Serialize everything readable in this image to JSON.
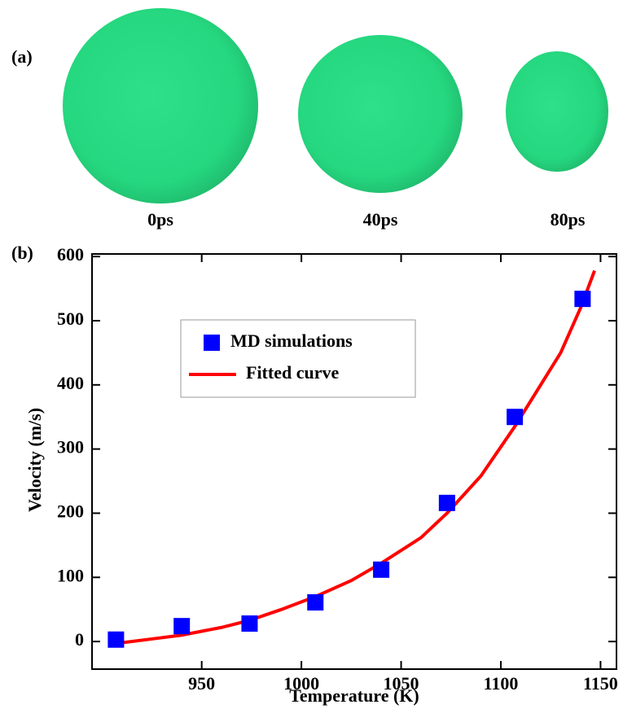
{
  "panel_a": {
    "label": "(a)",
    "captions": [
      "0ps",
      "40ps",
      "80ps"
    ]
  },
  "chart_data": {
    "type": "scatter",
    "panel_label": "(b)",
    "x_label": "Temperature (K)",
    "y_label": "Velocity (m/s)",
    "xlim": [
      895,
      1158
    ],
    "xticks": [
      950,
      1000,
      1050,
      1100,
      1150
    ],
    "ylim": [
      -43,
      604
    ],
    "yticks": [
      0,
      100,
      200,
      300,
      400,
      500,
      600
    ],
    "series": [
      {
        "name": "MD simulations",
        "mode": "markers",
        "color": "#0000ff",
        "x": [
          907,
          940,
          974,
          1007,
          1040,
          1073,
          1107,
          1141
        ],
        "values": [
          3,
          24,
          28,
          61,
          112,
          216,
          350,
          534
        ]
      },
      {
        "name": "Fitted curve",
        "mode": "line",
        "color": "#ff0000",
        "x": [
          907,
          925,
          940,
          960,
          974,
          990,
          1007,
          1025,
          1040,
          1060,
          1073,
          1090,
          1107,
          1120,
          1130,
          1140,
          1147
        ],
        "values": [
          -3,
          4,
          10,
          22,
          33,
          50,
          70,
          95,
          122,
          162,
          200,
          258,
          335,
          400,
          450,
          520,
          578
        ]
      }
    ]
  }
}
